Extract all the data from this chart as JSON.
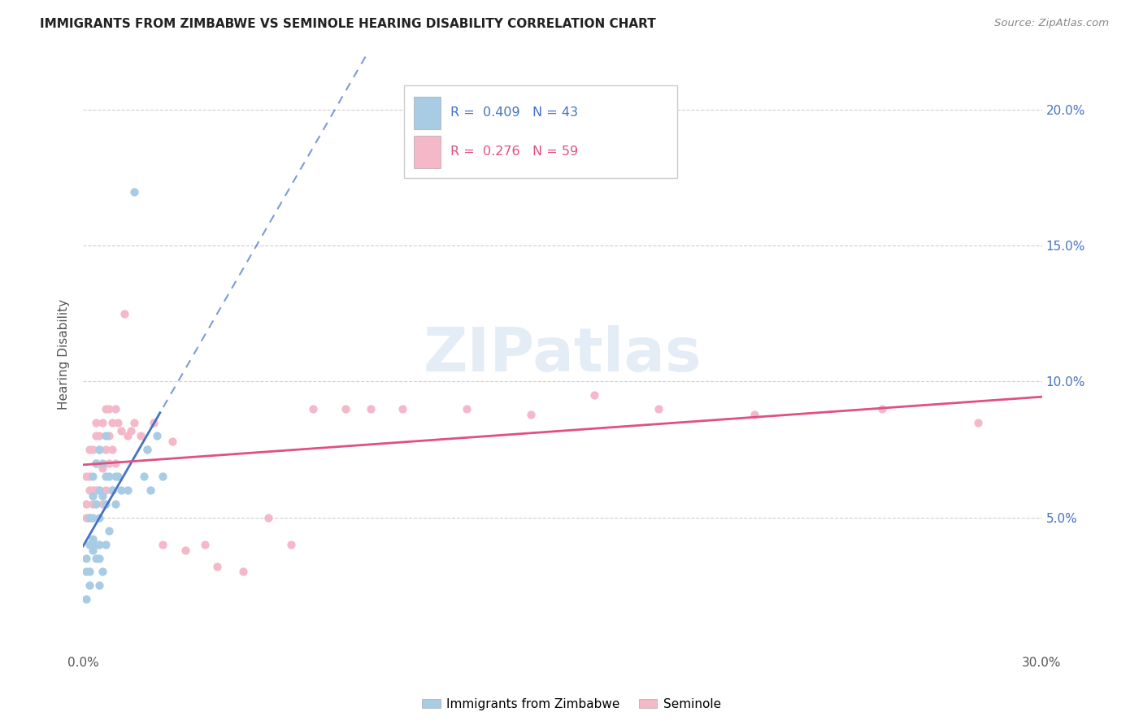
{
  "title": "IMMIGRANTS FROM ZIMBABWE VS SEMINOLE HEARING DISABILITY CORRELATION CHART",
  "source": "Source: ZipAtlas.com",
  "ylabel": "Hearing Disability",
  "xlim": [
    0.0,
    0.3
  ],
  "ylim": [
    0.0,
    0.22
  ],
  "x_ticks": [
    0.0,
    0.05,
    0.1,
    0.15,
    0.2,
    0.25,
    0.3
  ],
  "x_tick_labels": [
    "0.0%",
    "",
    "",
    "",
    "",
    "",
    "30.0%"
  ],
  "y_ticks": [
    0.0,
    0.05,
    0.1,
    0.15,
    0.2
  ],
  "y_tick_labels": [
    "",
    "5.0%",
    "10.0%",
    "15.0%",
    "20.0%"
  ],
  "blue_R": 0.409,
  "blue_N": 43,
  "pink_R": 0.276,
  "pink_N": 59,
  "blue_color": "#a8cce4",
  "pink_color": "#f4b8c8",
  "trend_blue_color": "#4472c4",
  "trend_pink_color": "#e05080",
  "legend_blue_label": "Immigrants from Zimbabwe",
  "legend_pink_label": "Seminole",
  "watermark_text": "ZIPatlas",
  "blue_scatter_x": [
    0.001,
    0.001,
    0.001,
    0.002,
    0.002,
    0.002,
    0.002,
    0.003,
    0.003,
    0.003,
    0.003,
    0.003,
    0.004,
    0.004,
    0.004,
    0.004,
    0.005,
    0.005,
    0.005,
    0.005,
    0.005,
    0.005,
    0.006,
    0.006,
    0.006,
    0.007,
    0.007,
    0.007,
    0.007,
    0.008,
    0.008,
    0.009,
    0.01,
    0.01,
    0.011,
    0.012,
    0.014,
    0.016,
    0.019,
    0.02,
    0.021,
    0.023,
    0.025
  ],
  "blue_scatter_y": [
    0.02,
    0.03,
    0.035,
    0.025,
    0.03,
    0.04,
    0.05,
    0.038,
    0.042,
    0.05,
    0.058,
    0.065,
    0.035,
    0.04,
    0.055,
    0.07,
    0.025,
    0.035,
    0.04,
    0.05,
    0.06,
    0.075,
    0.03,
    0.058,
    0.07,
    0.04,
    0.055,
    0.065,
    0.08,
    0.045,
    0.065,
    0.06,
    0.055,
    0.065,
    0.065,
    0.06,
    0.06,
    0.17,
    0.065,
    0.075,
    0.06,
    0.08,
    0.065
  ],
  "pink_scatter_x": [
    0.001,
    0.001,
    0.001,
    0.002,
    0.002,
    0.002,
    0.002,
    0.003,
    0.003,
    0.003,
    0.004,
    0.004,
    0.004,
    0.004,
    0.005,
    0.005,
    0.005,
    0.006,
    0.006,
    0.006,
    0.007,
    0.007,
    0.007,
    0.008,
    0.008,
    0.008,
    0.009,
    0.009,
    0.009,
    0.01,
    0.01,
    0.011,
    0.012,
    0.013,
    0.014,
    0.015,
    0.016,
    0.018,
    0.02,
    0.022,
    0.025,
    0.028,
    0.032,
    0.038,
    0.042,
    0.05,
    0.058,
    0.065,
    0.072,
    0.082,
    0.09,
    0.1,
    0.12,
    0.14,
    0.16,
    0.18,
    0.21,
    0.25,
    0.28
  ],
  "pink_scatter_y": [
    0.05,
    0.055,
    0.065,
    0.05,
    0.06,
    0.065,
    0.075,
    0.055,
    0.06,
    0.075,
    0.06,
    0.07,
    0.08,
    0.085,
    0.06,
    0.075,
    0.08,
    0.055,
    0.068,
    0.085,
    0.06,
    0.075,
    0.09,
    0.07,
    0.08,
    0.09,
    0.06,
    0.075,
    0.085,
    0.07,
    0.09,
    0.085,
    0.082,
    0.125,
    0.08,
    0.082,
    0.085,
    0.08,
    0.075,
    0.085,
    0.04,
    0.078,
    0.038,
    0.04,
    0.032,
    0.03,
    0.05,
    0.04,
    0.09,
    0.09,
    0.09,
    0.09,
    0.09,
    0.088,
    0.095,
    0.09,
    0.088,
    0.09,
    0.085
  ]
}
